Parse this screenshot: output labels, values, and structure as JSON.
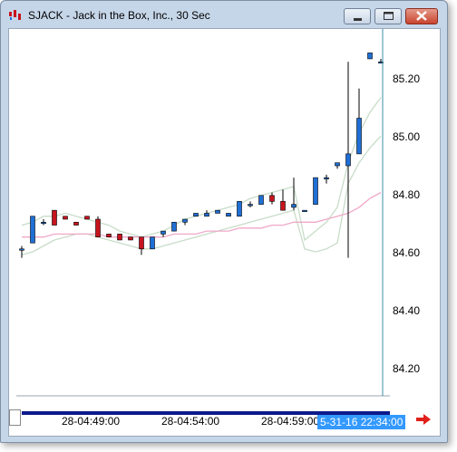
{
  "window": {
    "title": "SJACK - Jack in the Box, Inc., 30 Sec"
  },
  "icons": {
    "app": "chart-logo-icon",
    "minimize": "minimize-icon",
    "maximize": "maximize-icon",
    "close": "close-icon",
    "scroll_right": "red-right-arrow-icon"
  },
  "colors": {
    "up_candle": "#1f6fd6",
    "down_candle": "#c8141e",
    "band": "#c8dcc8",
    "ma_line": "#f0a8c8",
    "cursor_line": "#3a8fa8",
    "current_time_bg": "#3399ff"
  },
  "price_axis": {
    "labels": [
      "85.20",
      "85.00",
      "84.80",
      "84.60",
      "84.40",
      "84.20"
    ]
  },
  "time_axis": {
    "labels": [
      "28-04:49:00",
      "28-04:54:00",
      "28-04:59:00"
    ],
    "current": "5-31-16 22:34:00"
  },
  "chart_data": {
    "type": "candlestick",
    "symbol": "SJACK",
    "interval": "30 Sec",
    "ylim": [
      84.15,
      85.37
    ],
    "candles": [
      {
        "o": 84.66,
        "h": 84.67,
        "l": 84.63,
        "c": 84.66
      },
      {
        "o": 84.68,
        "h": 84.77,
        "l": 84.68,
        "c": 84.77
      },
      {
        "o": 84.75,
        "h": 84.76,
        "l": 84.74,
        "c": 84.75
      },
      {
        "o": 84.79,
        "h": 84.79,
        "l": 84.74,
        "c": 84.74
      },
      {
        "o": 84.77,
        "h": 84.77,
        "l": 84.76,
        "c": 84.76
      },
      {
        "o": 84.75,
        "h": 84.75,
        "l": 84.74,
        "c": 84.74
      },
      {
        "o": 84.77,
        "h": 84.77,
        "l": 84.76,
        "c": 84.76
      },
      {
        "o": 84.76,
        "h": 84.77,
        "l": 84.7,
        "c": 84.7
      },
      {
        "o": 84.71,
        "h": 84.71,
        "l": 84.7,
        "c": 84.7
      },
      {
        "o": 84.71,
        "h": 84.71,
        "l": 84.69,
        "c": 84.69
      },
      {
        "o": 84.7,
        "h": 84.7,
        "l": 84.69,
        "c": 84.69
      },
      {
        "o": 84.7,
        "h": 84.7,
        "l": 84.64,
        "c": 84.66
      },
      {
        "o": 84.66,
        "h": 84.7,
        "l": 84.66,
        "c": 84.7
      },
      {
        "o": 84.71,
        "h": 84.72,
        "l": 84.7,
        "c": 84.72
      },
      {
        "o": 84.72,
        "h": 84.75,
        "l": 84.72,
        "c": 84.75
      },
      {
        "o": 84.75,
        "h": 84.76,
        "l": 84.74,
        "c": 84.76
      },
      {
        "o": 84.77,
        "h": 84.78,
        "l": 84.77,
        "c": 84.78
      },
      {
        "o": 84.77,
        "h": 84.79,
        "l": 84.77,
        "c": 84.78
      },
      {
        "o": 84.78,
        "h": 84.79,
        "l": 84.78,
        "c": 84.79
      },
      {
        "o": 84.77,
        "h": 84.78,
        "l": 84.77,
        "c": 84.78
      },
      {
        "o": 84.77,
        "h": 84.82,
        "l": 84.77,
        "c": 84.82
      },
      {
        "o": 84.81,
        "h": 84.82,
        "l": 84.8,
        "c": 84.81
      },
      {
        "o": 84.81,
        "h": 84.84,
        "l": 84.81,
        "c": 84.84
      },
      {
        "o": 84.84,
        "h": 84.85,
        "l": 84.81,
        "c": 84.82
      },
      {
        "o": 84.82,
        "h": 84.86,
        "l": 84.79,
        "c": 84.79
      },
      {
        "o": 84.8,
        "h": 84.9,
        "l": 84.79,
        "c": 84.81
      },
      {
        "o": 84.79,
        "h": 84.79,
        "l": 84.79,
        "c": 84.79
      },
      {
        "o": 84.81,
        "h": 84.9,
        "l": 84.81,
        "c": 84.9
      },
      {
        "o": 84.9,
        "h": 84.91,
        "l": 84.88,
        "c": 84.9
      },
      {
        "o": 84.94,
        "h": 84.95,
        "l": 84.93,
        "c": 84.95
      },
      {
        "o": 84.94,
        "h": 85.29,
        "l": 84.63,
        "c": 84.98
      },
      {
        "o": 84.98,
        "h": 85.2,
        "l": 84.98,
        "c": 85.1
      },
      {
        "o": 85.3,
        "h": 85.32,
        "l": 85.3,
        "c": 85.32
      },
      {
        "o": 85.29,
        "h": 85.3,
        "l": 85.29,
        "c": 85.29
      }
    ],
    "upper_band": [
      84.74,
      84.75,
      84.77,
      84.77,
      84.78,
      84.77,
      84.76,
      84.75,
      84.74,
      84.72,
      84.71,
      84.7,
      84.71,
      84.72,
      84.74,
      84.76,
      84.77,
      84.78,
      84.79,
      84.8,
      84.81,
      84.83,
      84.84,
      84.85,
      84.86,
      84.87,
      84.69,
      84.72,
      84.75,
      84.8,
      84.95,
      85.05,
      85.12,
      85.17
    ],
    "lower_band": [
      84.64,
      84.65,
      84.67,
      84.69,
      84.7,
      84.71,
      84.71,
      84.7,
      84.69,
      84.68,
      84.67,
      84.66,
      84.66,
      84.67,
      84.68,
      84.69,
      84.7,
      84.71,
      84.72,
      84.73,
      84.74,
      84.75,
      84.76,
      84.77,
      84.78,
      84.79,
      84.66,
      84.65,
      84.66,
      84.68,
      84.88,
      84.95,
      85.0,
      85.04
    ],
    "moving_average": [
      84.7,
      84.7,
      84.7,
      84.71,
      84.71,
      84.71,
      84.71,
      84.71,
      84.7,
      84.7,
      84.7,
      84.7,
      84.7,
      84.7,
      84.71,
      84.71,
      84.71,
      84.72,
      84.72,
      84.72,
      84.73,
      84.73,
      84.73,
      84.74,
      84.74,
      84.75,
      84.75,
      84.75,
      84.76,
      84.77,
      84.78,
      84.8,
      84.83,
      84.85
    ]
  }
}
